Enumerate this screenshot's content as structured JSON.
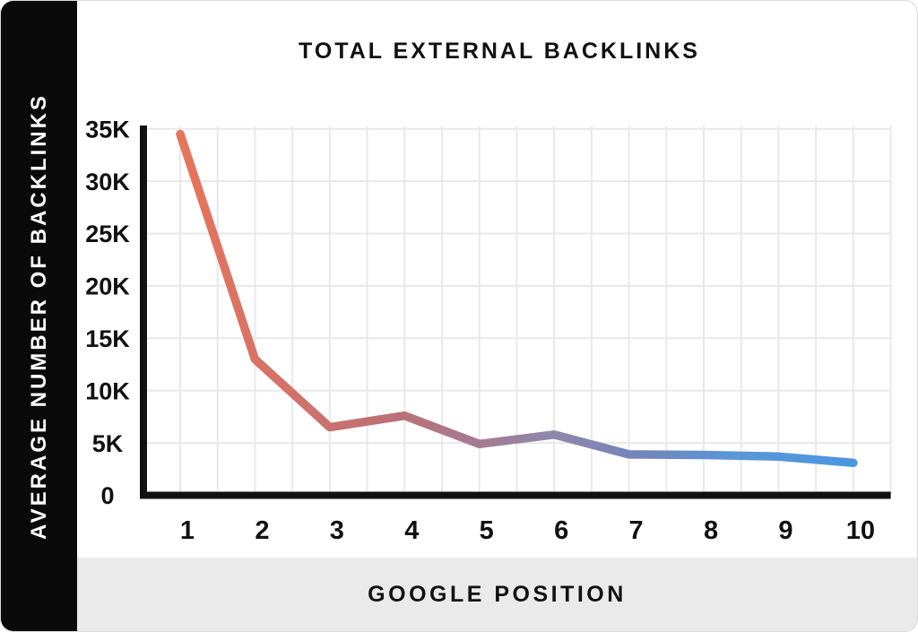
{
  "colors": {
    "sidebar_bg": "#0a0a0a",
    "footer_bg": "#eaeaea",
    "text_color": "#111111",
    "axis_color": "#111111",
    "grid_color": "#e9e9e9",
    "line_start": "#e8745b",
    "line_end": "#4c96e1"
  },
  "chart_data": {
    "type": "line",
    "title": "TOTAL EXTERNAL BACKLINKS",
    "xlabel": "GOOGLE POSITION",
    "ylabel": "AVERAGE NUMBER OF BACKLINKS",
    "x": [
      1,
      2,
      3,
      4,
      5,
      6,
      7,
      8,
      9,
      10
    ],
    "values": [
      34500,
      13000,
      6500,
      7600,
      4900,
      5800,
      3900,
      3850,
      3700,
      3100
    ],
    "x_tick_labels": [
      "1",
      "2",
      "3",
      "4",
      "5",
      "6",
      "7",
      "8",
      "9",
      "10"
    ],
    "y_tick_labels": [
      "0",
      "5K",
      "10K",
      "15K",
      "20K",
      "25K",
      "30K",
      "35K"
    ],
    "y_tick_values": [
      0,
      5000,
      10000,
      15000,
      20000,
      25000,
      30000,
      35000
    ],
    "ylim": [
      0,
      35000
    ],
    "grid": true,
    "legend": "none",
    "line_gradient": [
      {
        "offset": 0.0,
        "color": "#e8745b"
      },
      {
        "offset": 0.33,
        "color": "#ba7078"
      },
      {
        "offset": 0.55,
        "color": "#8f87ab"
      },
      {
        "offset": 0.67,
        "color": "#7584b9"
      },
      {
        "offset": 0.82,
        "color": "#5a97d6"
      },
      {
        "offset": 1.0,
        "color": "#4c96e1"
      }
    ]
  }
}
